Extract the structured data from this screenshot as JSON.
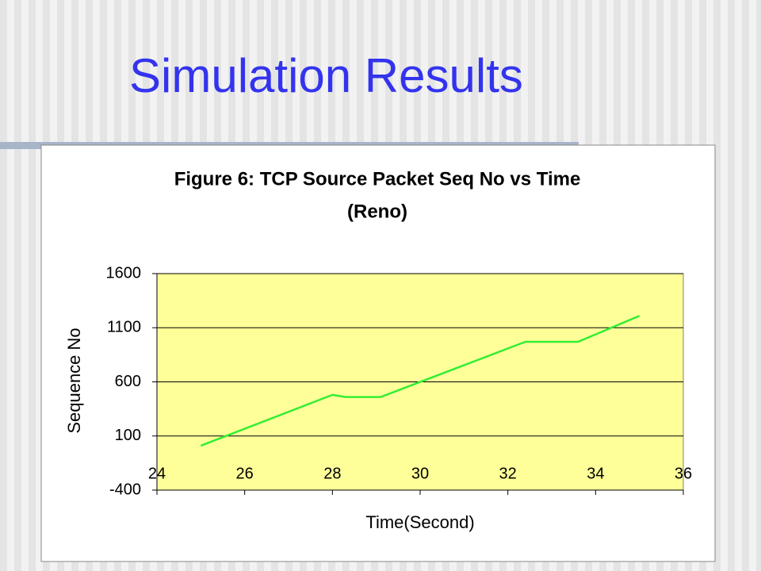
{
  "slide_title": "Simulation Results",
  "chart_data": {
    "type": "line",
    "title": "Figure 6: TCP Source Packet Seq No vs Time",
    "subtitle": "(Reno)",
    "x_label": "Time(Second)",
    "y_label": "Sequence No",
    "x": [
      25,
      28,
      28.3,
      29.1,
      32.4,
      33.6,
      35
    ],
    "values": [
      10,
      480,
      460,
      460,
      970,
      970,
      1210
    ],
    "color": "#33ee33",
    "plot_background": "#ffff99",
    "xlim": [
      24,
      36
    ],
    "xticks": [
      24,
      26,
      28,
      30,
      32,
      34,
      36
    ],
    "ylim": [
      -400,
      1600
    ],
    "yticks": [
      -400,
      100,
      600,
      1100,
      1600
    ],
    "grid": true
  }
}
